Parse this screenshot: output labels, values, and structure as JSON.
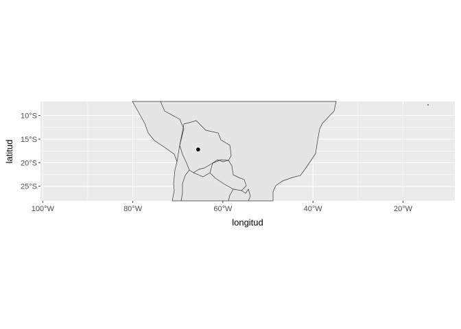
{
  "chart_data": {
    "type": "map",
    "xlabel": "longitud",
    "ylabel": "latitud",
    "xlim": [
      -100.5,
      -8.5
    ],
    "ylim": [
      -28.1,
      -7.0
    ],
    "x_ticks": [
      {
        "value": -100,
        "label": "100°W"
      },
      {
        "value": -80,
        "label": "80°W"
      },
      {
        "value": -60,
        "label": "60°W"
      },
      {
        "value": -40,
        "label": "40°W"
      },
      {
        "value": -20,
        "label": "20°W"
      }
    ],
    "y_ticks": [
      {
        "value": -10,
        "label": "10°S"
      },
      {
        "value": -15,
        "label": "15°S"
      },
      {
        "value": -20,
        "label": "20°S"
      },
      {
        "value": -25,
        "label": "25°S"
      }
    ],
    "points": [
      {
        "lon": -65.5,
        "lat": -17.2
      }
    ],
    "grid": true,
    "colors": {
      "panel": "#ebebeb",
      "land": "#e5e5e5",
      "border": "#333333",
      "grid": "#ffffff",
      "point": "#000000"
    }
  }
}
